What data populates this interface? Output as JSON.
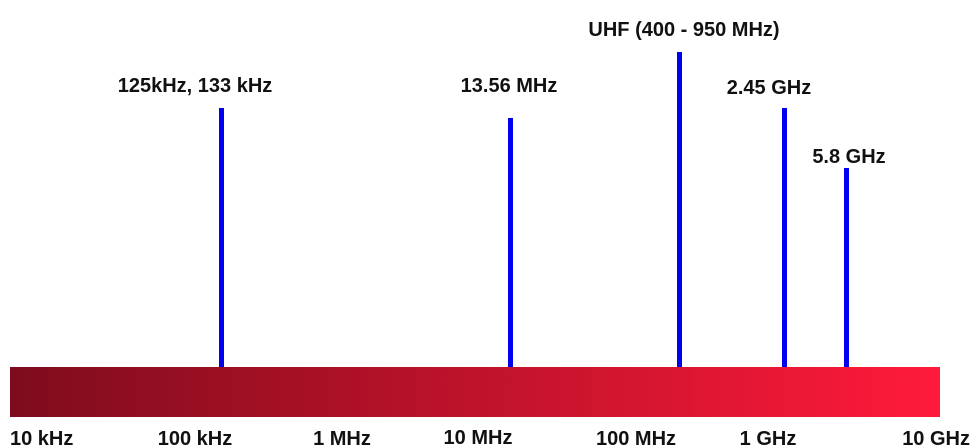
{
  "diagram": {
    "title": "",
    "colors": {
      "background": "#ffffff",
      "band_line": "#0000ee",
      "bar_start": "#7e0c1c",
      "bar_end": "#ff1a3a",
      "text": "#111111"
    },
    "axis": {
      "scale": "log",
      "range": [
        "10 kHz",
        "10 GHz"
      ],
      "ticks": [
        {
          "label": "10 kHz"
        },
        {
          "label": "100 kHz"
        },
        {
          "label": "1 MHz"
        },
        {
          "label": "10 MHz"
        },
        {
          "label": "100 MHz"
        },
        {
          "label": "1 GHz"
        },
        {
          "label": "10 GHz"
        }
      ]
    },
    "bands": [
      {
        "label": "125kHz, 133 kHz"
      },
      {
        "label": "13.56 MHz"
      },
      {
        "label": "UHF (400 -  950 MHz)"
      },
      {
        "label": "2.45 GHz"
      },
      {
        "label": "5.8 GHz"
      }
    ]
  }
}
